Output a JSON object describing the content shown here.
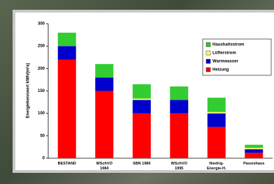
{
  "chart_data": {
    "type": "stacked_bar",
    "y_label": "Energiekennwert  kWh/(m²a)",
    "categories": [
      "BESTAND",
      "WSchVO\n1984",
      "SBN 1980",
      "WSchVO\n1995",
      "Niedrig-\nEnergie-H.",
      "Passivhaus"
    ],
    "series": [
      {
        "name": "Heizung",
        "color": "#ff0000",
        "values": [
          220,
          150,
          100,
          100,
          70,
          12
        ]
      },
      {
        "name": "Warmwasser",
        "color": "#0000cc",
        "values": [
          30,
          30,
          30,
          30,
          30,
          8
        ]
      },
      {
        "name": "Lüfterstrom",
        "color": "#ffff66",
        "values": [
          0,
          0,
          3,
          0,
          3,
          3
        ]
      },
      {
        "name": "Haushaltsstrom",
        "color": "#33cc33",
        "values": [
          30,
          30,
          32,
          30,
          32,
          7
        ]
      }
    ],
    "ylim": [
      0,
      300
    ],
    "yticks": [
      0,
      50,
      100,
      150,
      200,
      250,
      300
    ],
    "legend": "upper right"
  }
}
